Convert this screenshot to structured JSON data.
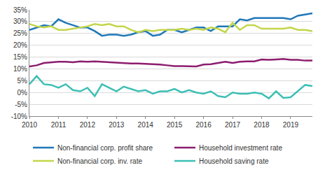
{
  "chart_data": {
    "type": "line",
    "categories": [
      "2010",
      null,
      null,
      null,
      "2011",
      null,
      null,
      null,
      "2012",
      null,
      null,
      null,
      "2013",
      null,
      null,
      null,
      "2014",
      null,
      null,
      null,
      "2015",
      null,
      null,
      null,
      "2016",
      null,
      null,
      null,
      "2017",
      null,
      null,
      null,
      "2018",
      null,
      null,
      null,
      "2019",
      null,
      null,
      null
    ],
    "series": [
      {
        "name": "Non-financial corp. profit share",
        "color": "#1f78b8",
        "values": [
          26.5,
          27.5,
          28.5,
          28,
          31,
          29.5,
          28.5,
          27.5,
          27.5,
          26,
          24,
          24.5,
          24.5,
          24,
          24.5,
          25.5,
          26,
          24,
          24.5,
          26.5,
          26.5,
          25.5,
          26.5,
          27.5,
          27.5,
          26,
          28,
          28,
          28,
          31,
          30.5,
          31.5,
          31.5,
          31.5,
          31.5,
          31.5,
          31,
          32.5,
          33,
          33.5
        ]
      },
      {
        "name": "Household investment rate",
        "color": "#8c1d6e",
        "values": [
          11,
          11.5,
          12.5,
          12.8,
          13,
          13,
          12.8,
          13.2,
          13,
          13.2,
          13,
          13,
          12.7,
          12.5,
          12.3,
          12.3,
          12.2,
          12,
          11.8,
          11.5,
          11.2,
          11.2,
          11,
          11,
          11.8,
          12,
          12.5,
          13,
          12.5,
          13,
          13.2,
          13.2,
          14,
          13.8,
          14,
          14.2,
          13.8,
          13.8,
          13.5,
          13.5
        ]
      },
      {
        "name": "Non-financial corp. inv. rate",
        "color": "#c3d64a",
        "values": [
          29,
          28,
          27.5,
          28,
          26.5,
          26.5,
          27,
          27.5,
          28,
          29,
          28.5,
          29,
          28,
          28,
          26.5,
          25.5,
          26.5,
          26,
          26.5,
          26.5,
          26.5,
          27,
          26.5,
          27,
          26.5,
          27.5,
          27,
          25.5,
          29.5,
          26.5,
          28.5,
          28.5,
          27,
          27,
          27,
          27,
          27.5,
          26.5,
          26.5,
          26
        ]
      },
      {
        "name": "Household saving rate",
        "color": "#3dbfb5",
        "values": [
          3.5,
          7,
          3.5,
          3.2,
          2,
          3.5,
          1,
          0.5,
          2,
          -1.5,
          3.5,
          2,
          0.5,
          2.5,
          1.5,
          0.5,
          1,
          -0.5,
          0.5,
          0.5,
          1.5,
          0,
          1,
          0,
          -0.5,
          0.5,
          -1.5,
          -2,
          0,
          -0.5,
          -0.5,
          0,
          -0.5,
          -2.5,
          0.5,
          -2.3,
          -2,
          0.5,
          3.2,
          2.7
        ]
      }
    ],
    "ylim": [
      -10,
      35
    ],
    "yticks": [
      {
        "value": -10,
        "label": "-10%"
      },
      {
        "value": -5,
        "label": "-5%"
      },
      {
        "value": 0,
        "label": "0%"
      },
      {
        "value": 5,
        "label": "5%"
      },
      {
        "value": 10,
        "label": "10%"
      },
      {
        "value": 15,
        "label": "15%"
      },
      {
        "value": 20,
        "label": "20%"
      },
      {
        "value": 25,
        "label": "25%"
      },
      {
        "value": 30,
        "label": "30%"
      },
      {
        "value": 35,
        "label": "35%"
      }
    ],
    "grid": true,
    "legend": "bottom"
  }
}
